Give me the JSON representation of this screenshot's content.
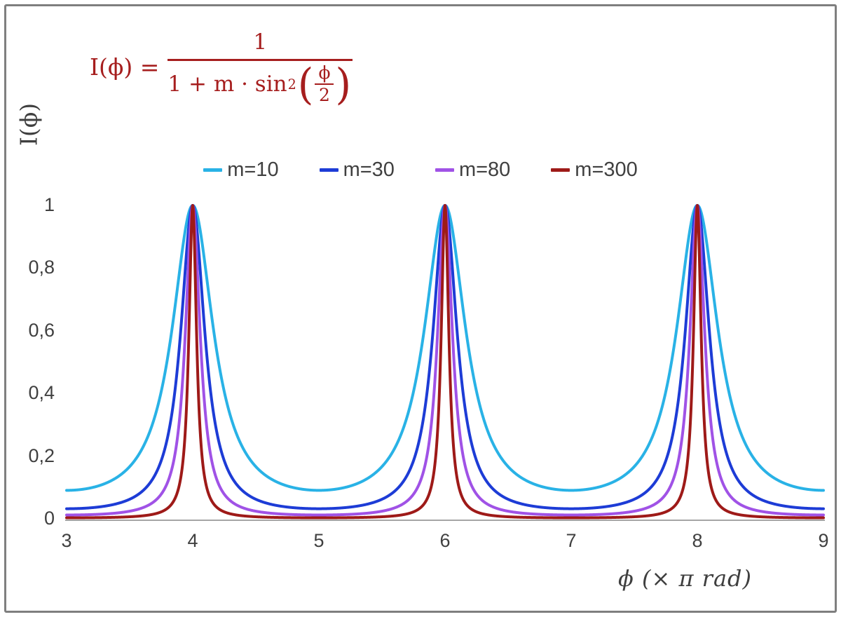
{
  "formula": {
    "lhs": "I(ϕ) =",
    "numerator": "1",
    "den_text": "1 + m · sin",
    "den_sup": "2",
    "paren_open": "(",
    "paren_close": ")",
    "inner_num": "ϕ",
    "inner_den": "2"
  },
  "chart_data": {
    "type": "line",
    "title": "",
    "function": "I(phi) = 1 / (1 + m * sin^2(phi/2)), x axis in units of pi rad",
    "xlabel": "ϕ  (× π rad)",
    "ylabel": "I(ϕ)",
    "xlim": [
      3,
      9
    ],
    "ylim": [
      0,
      1
    ],
    "grid": false,
    "legend_position": "top-center",
    "x_ticks": [
      "3",
      "4",
      "5",
      "6",
      "7",
      "8",
      "9"
    ],
    "x_tick_values": [
      3,
      4,
      5,
      6,
      7,
      8,
      9
    ],
    "y_ticks": [
      "0",
      "0,2",
      "0,4",
      "0,6",
      "0,8",
      "1"
    ],
    "y_tick_values": [
      0,
      0.2,
      0.4,
      0.6,
      0.8,
      1
    ],
    "peaks_at_x": [
      4,
      6,
      8
    ],
    "peak_value": 1,
    "series": [
      {
        "name": "m=10",
        "m": 10,
        "color": "#29b2e6",
        "min_value": 0.0909
      },
      {
        "name": "m=30",
        "m": 30,
        "color": "#1d3cd6",
        "min_value": 0.0323
      },
      {
        "name": "m=80",
        "m": 80,
        "color": "#a052e6",
        "min_value": 0.0123
      },
      {
        "name": "m=300",
        "m": 300,
        "color": "#9e1a18",
        "min_value": 0.0033
      }
    ],
    "axis_color": "#a6a6a6"
  }
}
